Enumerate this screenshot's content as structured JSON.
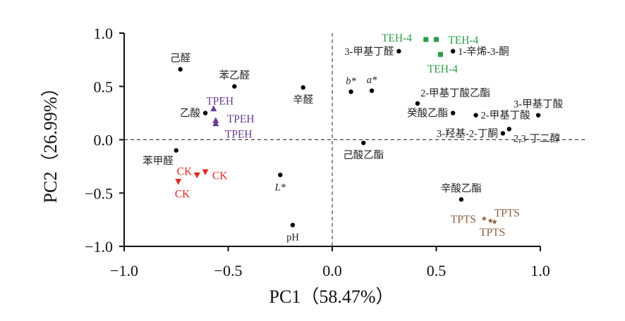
{
  "chart_data": {
    "type": "scatter",
    "title": "",
    "xlabel": "PC1（58.47%）",
    "ylabel": "PC2（26.99%）",
    "xlim": [
      -1.0,
      1.0
    ],
    "ylim": [
      -1.0,
      1.0
    ],
    "xticks": [
      -1.0,
      -0.5,
      0.0,
      0.5,
      1.0
    ],
    "yticks": [
      -1.0,
      -0.5,
      0.0,
      0.5,
      1.0
    ],
    "xtick_labels": [
      "−1.0",
      "−0.5",
      "0.0",
      "0.5",
      "1.0"
    ],
    "ytick_labels": [
      "−1.0",
      "−0.5",
      "0.0",
      "0.5",
      "1.0"
    ],
    "reference_lines": {
      "x": 0,
      "y": 0,
      "style": "dashed"
    },
    "grid": false,
    "loadings": [
      {
        "label": "己醛",
        "x": -0.73,
        "y": 0.66,
        "anchor": "n"
      },
      {
        "label": "苯乙醛",
        "x": -0.47,
        "y": 0.5,
        "anchor": "n"
      },
      {
        "label": "辛醛",
        "x": -0.14,
        "y": 0.49,
        "anchor": "s"
      },
      {
        "label": "乙酸",
        "x": -0.61,
        "y": 0.25,
        "anchor": "w"
      },
      {
        "label": "苯甲醛",
        "x": -0.75,
        "y": -0.1,
        "anchor": "sw"
      },
      {
        "label": "L*",
        "x": -0.25,
        "y": -0.33,
        "anchor": "s",
        "italic": true
      },
      {
        "label": "pH",
        "x": -0.19,
        "y": -0.8,
        "anchor": "s"
      },
      {
        "label": "3-甲基丁醛",
        "x": 0.32,
        "y": 0.83,
        "anchor": "w"
      },
      {
        "label": "1-辛烯-3-酮",
        "x": 0.58,
        "y": 0.83,
        "anchor": "e"
      },
      {
        "label": "b*",
        "x": 0.09,
        "y": 0.45,
        "anchor": "n",
        "italic": true
      },
      {
        "label": "a*",
        "x": 0.19,
        "y": 0.46,
        "anchor": "n",
        "italic": true
      },
      {
        "label": "2-甲基丁酸乙酯",
        "x": 0.41,
        "y": 0.34,
        "anchor": "ne"
      },
      {
        "label": "3-甲基丁酸",
        "x": 0.99,
        "y": 0.23,
        "anchor": "n"
      },
      {
        "label": "癸酸乙酯",
        "x": 0.58,
        "y": 0.25,
        "anchor": "w"
      },
      {
        "label": "2-甲基丁酸",
        "x": 0.69,
        "y": 0.23,
        "anchor": "e"
      },
      {
        "label": "3-羟基-2-丁酮",
        "x": 0.82,
        "y": 0.06,
        "anchor": "w"
      },
      {
        "label": "2,3-丁二醇",
        "x": 0.85,
        "y": 0.1,
        "anchor": "se"
      },
      {
        "label": "己酸乙酯",
        "x": 0.15,
        "y": -0.03,
        "anchor": "s"
      },
      {
        "label": "辛酸乙酯",
        "x": 0.62,
        "y": -0.56,
        "anchor": "n"
      }
    ],
    "series": [
      {
        "name": "CK",
        "color": "#e02a20",
        "marker": "triangle-down",
        "points": [
          {
            "x": -0.74,
            "y": -0.39
          },
          {
            "x": -0.65,
            "y": -0.33
          },
          {
            "x": -0.61,
            "y": -0.3
          }
        ],
        "labels": [
          {
            "text": "CK",
            "x": -0.71,
            "y": -0.29
          },
          {
            "text": "CK",
            "x": -0.54,
            "y": -0.33
          },
          {
            "text": "CK",
            "x": -0.72,
            "y": -0.5
          }
        ]
      },
      {
        "name": "TPEH",
        "color": "#6a3a96",
        "marker": "triangle-up",
        "points": [
          {
            "x": -0.57,
            "y": 0.29
          },
          {
            "x": -0.56,
            "y": 0.18
          },
          {
            "x": -0.56,
            "y": 0.15
          }
        ],
        "labels": [
          {
            "text": "TPEH",
            "x": -0.54,
            "y": 0.37
          },
          {
            "text": "TPEH",
            "x": -0.44,
            "y": 0.2
          },
          {
            "text": "TPEH",
            "x": -0.45,
            "y": 0.06
          }
        ]
      },
      {
        "name": "TEH-4",
        "color": "#2e9a45",
        "marker": "square",
        "points": [
          {
            "x": 0.45,
            "y": 0.94
          },
          {
            "x": 0.5,
            "y": 0.94
          },
          {
            "x": 0.52,
            "y": 0.8
          }
        ],
        "labels": [
          {
            "text": "TEH-4",
            "x": 0.31,
            "y": 0.96
          },
          {
            "text": "TEH-4",
            "x": 0.63,
            "y": 0.94
          },
          {
            "text": "TEH-4",
            "x": 0.53,
            "y": 0.67
          }
        ]
      },
      {
        "name": "TPTS",
        "color": "#8a6040",
        "marker": "star",
        "points": [
          {
            "x": 0.73,
            "y": -0.74
          },
          {
            "x": 0.76,
            "y": -0.76
          },
          {
            "x": 0.78,
            "y": -0.77
          }
        ],
        "labels": [
          {
            "text": "TPTS",
            "x": 0.63,
            "y": -0.74
          },
          {
            "text": "TPTS",
            "x": 0.84,
            "y": -0.68
          },
          {
            "text": "TPTS",
            "x": 0.77,
            "y": -0.86
          }
        ]
      }
    ]
  }
}
